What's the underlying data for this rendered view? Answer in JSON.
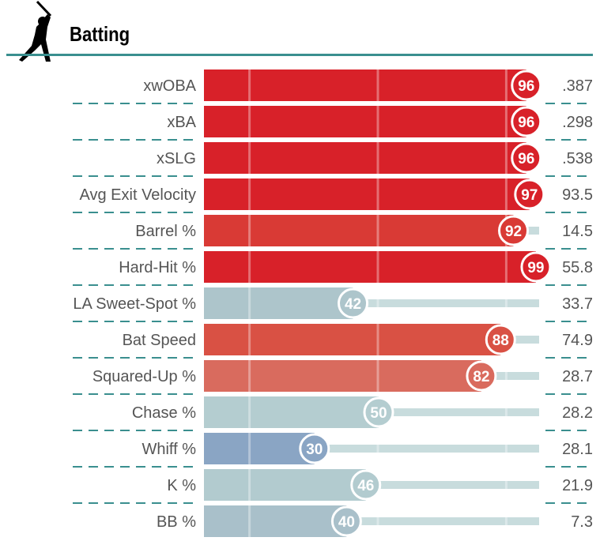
{
  "header": {
    "title": "Batting",
    "icon": "batter-silhouette-icon"
  },
  "colors": {
    "rule": "#3a8f8f",
    "track": "#c8dcdd",
    "text": "#555555"
  },
  "chart_data": {
    "type": "bar",
    "orientation": "horizontal",
    "xlim": [
      0,
      100
    ],
    "categories": [
      "xwOBA",
      "xBA",
      "xSLG",
      "Avg Exit Velocity",
      "Barrel %",
      "Hard-Hit %",
      "LA Sweet-Spot %",
      "Bat Speed",
      "Squared-Up %",
      "Chase %",
      "Whiff %",
      "K %",
      "BB %"
    ],
    "percentiles": [
      96,
      96,
      96,
      97,
      92,
      99,
      42,
      88,
      82,
      50,
      30,
      46,
      40
    ],
    "values": [
      ".387",
      ".298",
      ".538",
      "93.5",
      "14.5",
      "55.8",
      "33.7",
      "74.9",
      "28.7",
      "28.2",
      "28.1",
      "21.9",
      "7.3"
    ],
    "bar_colors": [
      "#d82129",
      "#d82129",
      "#d82129",
      "#d82129",
      "#d93a35",
      "#d82129",
      "#adc5cb",
      "#d95144",
      "#d96b5e",
      "#b4cdd0",
      "#8aa5c4",
      "#b2cbcf",
      "#a9c0ca"
    ],
    "reference_lines": [
      10,
      50,
      90
    ]
  }
}
